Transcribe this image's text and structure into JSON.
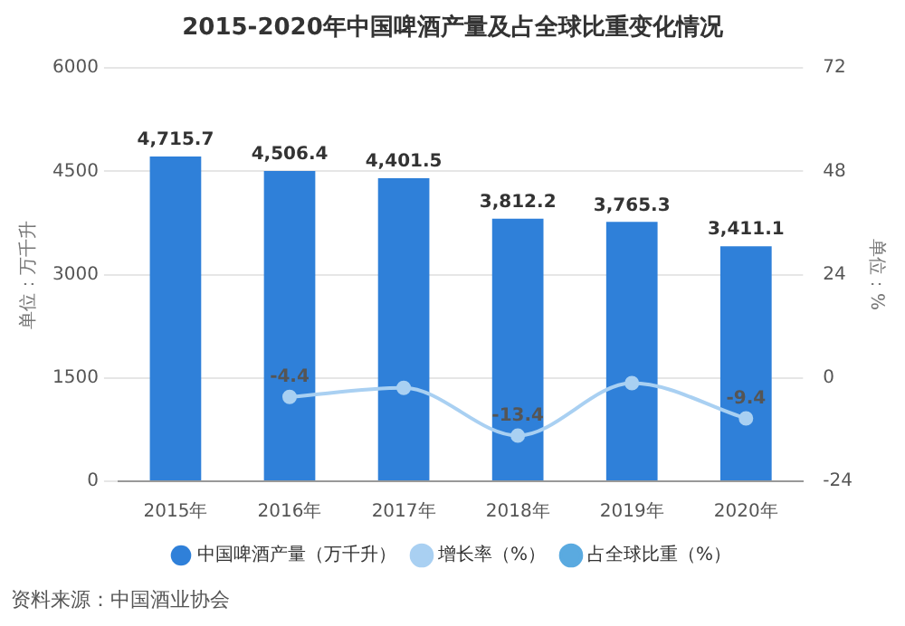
{
  "chart_data": {
    "type": "bar",
    "title": "2015-2020年中国啤酒产量及占全球比重变化情况",
    "ylabel": "单位：万千升",
    "y2label": "单位：%",
    "categories": [
      "2015年",
      "2016年",
      "2017年",
      "2018年",
      "2019年",
      "2020年"
    ],
    "series": [
      {
        "name": "中国啤酒产量（万千升）",
        "color": "#2f80d9",
        "values": [
          4715.7,
          4506.4,
          4401.5,
          3812.2,
          3765.3,
          3411.1
        ],
        "value_labels": [
          "4,715.7",
          "4,506.4",
          "4,401.5",
          "3,812.2",
          "3,765.3",
          "3,411.1"
        ]
      },
      {
        "name": "增长率（%）",
        "type": "line",
        "axis": "y2",
        "color": "#a9d0f2",
        "values": [
          null,
          -4.4,
          -2.3,
          -13.4,
          -1.2,
          -9.4
        ],
        "value_labels": [
          null,
          "-4.4",
          null,
          "-13.4",
          null,
          "-9.4"
        ]
      },
      {
        "name": "占全球比重（%）",
        "type": "line",
        "axis": "y2",
        "color": "#5aaae0",
        "values": [
          null,
          null,
          null,
          null,
          null,
          null
        ]
      }
    ],
    "ylim": [
      0,
      6000
    ],
    "yticks": [
      0,
      1500,
      3000,
      4500,
      6000
    ],
    "y2lim": [
      -24,
      72
    ],
    "y2ticks": [
      -24,
      0,
      24,
      48,
      72
    ],
    "grid": "y",
    "legend": "bottom",
    "marker": "circle",
    "annotations": [
      "资料来源：中国酒业协会"
    ]
  }
}
